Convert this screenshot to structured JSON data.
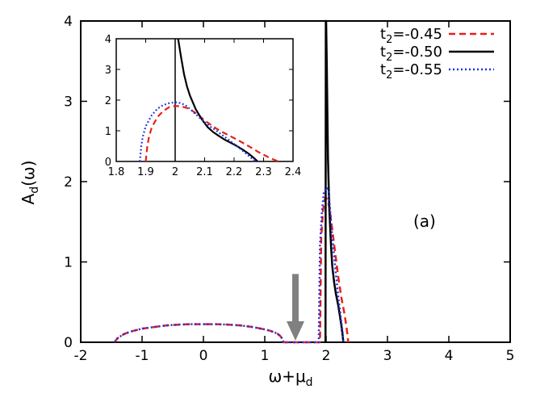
{
  "chart_data": {
    "type": "line",
    "panel_label": "(a)",
    "xlabel": "ω+μ_d",
    "ylabel": "A_d(ω)",
    "xlim": [
      -2,
      5
    ],
    "ylim": [
      0,
      4
    ],
    "xticks": [
      "-2",
      "-1",
      "0",
      "1",
      "2",
      "3",
      "4",
      "5"
    ],
    "yticks": [
      "0",
      "1",
      "2",
      "3",
      "4"
    ],
    "legend_position": "top-right",
    "series": [
      {
        "name": "t_2=-0.45",
        "color": "#e8201a",
        "style": "dashed",
        "x": [
          -1.45,
          -1.4,
          -1.3,
          -1.2,
          -1.0,
          -0.8,
          -0.6,
          -0.4,
          -0.2,
          0.0,
          0.2,
          0.4,
          0.6,
          0.8,
          1.0,
          1.1,
          1.2,
          1.25,
          1.3,
          1.3,
          1.85,
          1.9,
          1.92,
          1.95,
          1.98,
          2.0,
          2.05,
          2.1,
          2.15,
          2.2,
          2.25,
          2.3,
          2.33,
          2.35,
          2.36
        ],
        "y": [
          0.0,
          0.05,
          0.1,
          0.13,
          0.17,
          0.19,
          0.21,
          0.22,
          0.225,
          0.225,
          0.225,
          0.22,
          0.21,
          0.19,
          0.16,
          0.14,
          0.11,
          0.08,
          0.03,
          0.0,
          0.0,
          0.0,
          1.3,
          1.65,
          1.78,
          1.8,
          1.7,
          1.4,
          1.1,
          0.8,
          0.55,
          0.35,
          0.2,
          0.08,
          0.0
        ]
      },
      {
        "name": "t_2=-0.50",
        "color": "#000000",
        "style": "solid",
        "x": [
          1.99,
          1.995,
          2.0,
          2.01,
          2.03,
          2.05,
          2.08,
          2.1,
          2.13,
          2.16,
          2.2,
          2.23,
          2.25,
          2.27,
          2.28
        ],
        "y": [
          0.0,
          4.0,
          4.0,
          3.5,
          2.3,
          1.7,
          1.2,
          0.95,
          0.75,
          0.6,
          0.45,
          0.3,
          0.2,
          0.08,
          0.0
        ]
      },
      {
        "name": "t_2=-0.55",
        "color": "#1f2fe0",
        "style": "dotted",
        "x": [
          -1.45,
          -1.4,
          -1.3,
          -1.2,
          -1.0,
          -0.8,
          -0.6,
          -0.4,
          -0.2,
          0.0,
          0.2,
          0.4,
          0.6,
          0.8,
          1.0,
          1.1,
          1.2,
          1.25,
          1.3,
          1.3,
          1.85,
          1.88,
          1.9,
          1.93,
          1.96,
          2.0,
          2.04,
          2.08,
          2.12,
          2.16,
          2.2,
          2.24,
          2.27,
          2.28
        ],
        "y": [
          0.0,
          0.05,
          0.1,
          0.13,
          0.17,
          0.19,
          0.21,
          0.22,
          0.225,
          0.225,
          0.225,
          0.22,
          0.21,
          0.19,
          0.16,
          0.14,
          0.11,
          0.08,
          0.03,
          0.0,
          0.0,
          0.0,
          1.2,
          1.6,
          1.85,
          1.93,
          1.9,
          1.5,
          1.15,
          0.85,
          0.55,
          0.3,
          0.12,
          0.0
        ]
      }
    ],
    "annotation_arrow": {
      "x": 1.5,
      "y_top": 0.85,
      "y_bottom": 0.0,
      "color": "#808080"
    },
    "inset": {
      "xlim": [
        1.8,
        2.4
      ],
      "ylim": [
        0,
        4
      ],
      "xticks": [
        "1.8",
        "1.9",
        "2",
        "2.1",
        "2.2",
        "2.3",
        "2.4"
      ],
      "yticks": [
        "0",
        "1",
        "2",
        "3",
        "4"
      ],
      "vline_x": 2.0,
      "series": [
        {
          "name": "t_2=-0.45",
          "color": "#e8201a",
          "style": "dashed",
          "x": [
            1.9,
            1.905,
            1.91,
            1.92,
            1.94,
            1.96,
            1.98,
            2.0,
            2.02,
            2.04,
            2.06,
            2.08,
            2.1,
            2.12,
            2.14,
            2.16,
            2.18,
            2.2,
            2.22,
            2.24,
            2.26,
            2.28,
            2.3,
            2.32,
            2.34,
            2.35
          ],
          "y": [
            0.0,
            0.45,
            0.75,
            1.1,
            1.45,
            1.65,
            1.77,
            1.81,
            1.8,
            1.74,
            1.64,
            1.5,
            1.34,
            1.2,
            1.07,
            0.96,
            0.86,
            0.76,
            0.66,
            0.55,
            0.44,
            0.32,
            0.22,
            0.12,
            0.04,
            0.0
          ]
        },
        {
          "name": "t_2=-0.50",
          "color": "#000000",
          "style": "solid",
          "x": [
            2.01,
            2.02,
            2.03,
            2.04,
            2.05,
            2.07,
            2.09,
            2.11,
            2.13,
            2.15,
            2.17,
            2.19,
            2.21,
            2.23,
            2.25,
            2.27,
            2.28
          ],
          "y": [
            4.0,
            3.4,
            2.85,
            2.45,
            2.15,
            1.7,
            1.38,
            1.12,
            0.95,
            0.82,
            0.7,
            0.6,
            0.5,
            0.38,
            0.25,
            0.09,
            0.0
          ]
        },
        {
          "name": "t_2=-0.55",
          "color": "#1f2fe0",
          "style": "dotted",
          "x": [
            1.88,
            1.885,
            1.89,
            1.9,
            1.92,
            1.94,
            1.96,
            1.98,
            2.0,
            2.02,
            2.04,
            2.06,
            2.08,
            2.1,
            2.12,
            2.14,
            2.16,
            2.18,
            2.2,
            2.22,
            2.24,
            2.26,
            2.27,
            2.28
          ],
          "y": [
            0.0,
            0.5,
            0.8,
            1.15,
            1.5,
            1.72,
            1.84,
            1.9,
            1.93,
            1.9,
            1.8,
            1.63,
            1.45,
            1.28,
            1.13,
            1.0,
            0.86,
            0.72,
            0.57,
            0.42,
            0.26,
            0.1,
            0.04,
            0.0
          ]
        }
      ]
    }
  }
}
